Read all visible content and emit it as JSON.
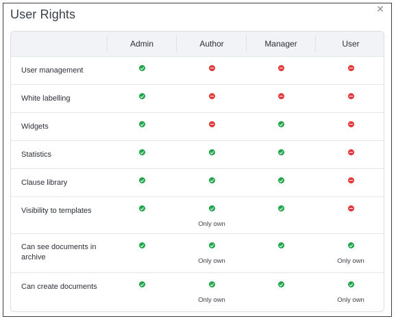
{
  "dialog": {
    "title": "User Rights",
    "close_icon": "close-icon"
  },
  "table": {
    "columns": [
      "Admin",
      "Author",
      "Manager",
      "User"
    ],
    "rows": [
      {
        "label": "User management",
        "cells": [
          {
            "status": "yes"
          },
          {
            "status": "no"
          },
          {
            "status": "no"
          },
          {
            "status": "no"
          }
        ]
      },
      {
        "label": "White labelling",
        "cells": [
          {
            "status": "yes"
          },
          {
            "status": "no"
          },
          {
            "status": "no"
          },
          {
            "status": "no"
          }
        ]
      },
      {
        "label": "Widgets",
        "cells": [
          {
            "status": "yes"
          },
          {
            "status": "no"
          },
          {
            "status": "yes"
          },
          {
            "status": "no"
          }
        ]
      },
      {
        "label": "Statistics",
        "cells": [
          {
            "status": "yes"
          },
          {
            "status": "yes"
          },
          {
            "status": "yes"
          },
          {
            "status": "no"
          }
        ]
      },
      {
        "label": "Clause library",
        "cells": [
          {
            "status": "yes"
          },
          {
            "status": "yes"
          },
          {
            "status": "yes"
          },
          {
            "status": "no"
          }
        ]
      },
      {
        "label": "Visibility to templates",
        "cells": [
          {
            "status": "yes"
          },
          {
            "status": "yes",
            "note": "Only own"
          },
          {
            "status": "yes"
          },
          {
            "status": "no"
          }
        ]
      },
      {
        "label": "Can see documents in archive",
        "cells": [
          {
            "status": "yes"
          },
          {
            "status": "yes",
            "note": "Only own"
          },
          {
            "status": "yes"
          },
          {
            "status": "yes",
            "note": "Only own"
          }
        ]
      },
      {
        "label": "Can create documents",
        "cells": [
          {
            "status": "yes"
          },
          {
            "status": "yes",
            "note": "Only own"
          },
          {
            "status": "yes"
          },
          {
            "status": "yes",
            "note": "Only own"
          }
        ]
      }
    ]
  },
  "colors": {
    "allowed": "#1fa64a",
    "denied": "#e23a3a"
  },
  "icons": {
    "allowed": "check-circle-icon",
    "denied": "minus-circle-icon"
  }
}
